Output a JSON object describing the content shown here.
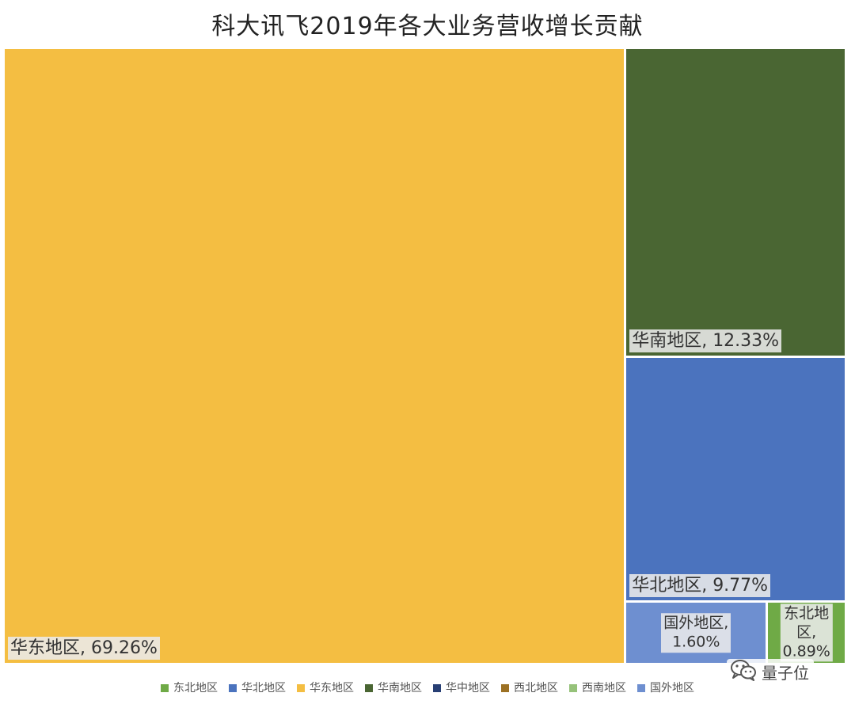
{
  "chart_data": {
    "type": "treemap",
    "title": "科大讯飞2019年各大业务营收增长贡献",
    "unit": "%",
    "items": [
      {
        "name": "华东地区",
        "value": 69.26,
        "label": "华东地区, 69.26%",
        "color": "#F4BE42"
      },
      {
        "name": "华南地区",
        "value": 12.33,
        "label": "华南地区, 12.33%",
        "color": "#4A6633"
      },
      {
        "name": "华北地区",
        "value": 9.77,
        "label": "华北地区, 9.77%",
        "color": "#4B73BE"
      },
      {
        "name": "国外地区",
        "value": 1.6,
        "label_line1": "国外地区,",
        "label_line2": "1.60%",
        "color": "#6E8FD0"
      },
      {
        "name": "东北地区",
        "value": 0.89,
        "label_line1": "东北地区,",
        "label_line2": "0.89%",
        "color": "#6FAA46"
      }
    ],
    "legend": {
      "position": "bottom",
      "entries": [
        {
          "name": "东北地区",
          "color": "#6FAA46"
        },
        {
          "name": "华北地区",
          "color": "#4B73BE"
        },
        {
          "name": "华东地区",
          "color": "#F4BE42"
        },
        {
          "name": "华南地区",
          "color": "#4A6633"
        },
        {
          "name": "华中地区",
          "color": "#283F74"
        },
        {
          "name": "西北地区",
          "color": "#9C7124"
        },
        {
          "name": "西南地区",
          "color": "#96C27A"
        },
        {
          "name": "国外地区",
          "color": "#6E8FD0"
        }
      ]
    }
  },
  "watermark": {
    "text": "量子位",
    "icon": "wechat-icon"
  }
}
